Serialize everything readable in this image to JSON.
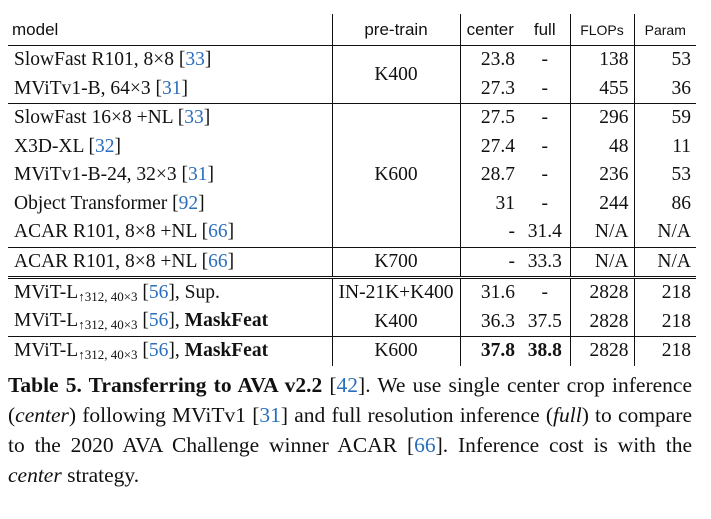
{
  "table": {
    "header": [
      "model",
      "pre-train",
      "center",
      "full",
      "FLOPs",
      "Param"
    ],
    "groups": [
      {
        "pretrain": "K400",
        "rows": [
          {
            "model": [
              {
                "text": "SlowFast R101, 8×8 ["
              },
              {
                "text": "33",
                "style": "ref"
              },
              {
                "text": "]"
              }
            ],
            "center": 23.8,
            "full": "-",
            "flops": 138,
            "param": 53
          },
          {
            "model": [
              {
                "text": "MViTv1-B, 64×3 ["
              },
              {
                "text": "31",
                "style": "ref"
              },
              {
                "text": "]"
              }
            ],
            "center": 27.3,
            "full": "-",
            "flops": 455,
            "param": 36
          }
        ]
      },
      {
        "pretrain": "K600",
        "rows": [
          {
            "model": [
              {
                "text": "SlowFast 16×8 +NL ["
              },
              {
                "text": "33",
                "style": "ref"
              },
              {
                "text": "]"
              }
            ],
            "center": 27.5,
            "full": "-",
            "flops": 296,
            "param": 59
          },
          {
            "model": [
              {
                "text": "X3D-XL ["
              },
              {
                "text": "32",
                "style": "ref"
              },
              {
                "text": "]"
              }
            ],
            "center": 27.4,
            "full": "-",
            "flops": 48,
            "param": 11
          },
          {
            "model": [
              {
                "text": "MViTv1-B-24, 32×3 ["
              },
              {
                "text": "31",
                "style": "ref"
              },
              {
                "text": "]"
              }
            ],
            "center": 28.7,
            "full": "-",
            "flops": 236,
            "param": 53
          },
          {
            "model": [
              {
                "text": "Object Transformer ["
              },
              {
                "text": "92",
                "style": "ref"
              },
              {
                "text": "]"
              }
            ],
            "center": 31.0,
            "full": "-",
            "flops": 244,
            "param": 86
          },
          {
            "model": [
              {
                "text": "ACAR R101, 8×8 +NL ["
              },
              {
                "text": "66",
                "style": "ref"
              },
              {
                "text": "]"
              }
            ],
            "center": "-",
            "full": 31.4,
            "flops": "N/A",
            "param": "N/A"
          }
        ]
      },
      {
        "pretrain": "K700",
        "rows": [
          {
            "model": [
              {
                "text": "ACAR R101, 8×8 +NL ["
              },
              {
                "text": "66",
                "style": "ref"
              },
              {
                "text": "]"
              }
            ],
            "center": "-",
            "full": 33.3,
            "flops": "N/A",
            "param": "N/A"
          }
        ]
      },
      {
        "rows": [
          {
            "pretrain": "IN-21K+K400",
            "model": [
              {
                "text": "MViT-L"
              },
              {
                "text": "↑312, 40×3",
                "style": "sub"
              },
              {
                "text": " ["
              },
              {
                "text": "56",
                "style": "ref"
              },
              {
                "text": "], Sup."
              }
            ],
            "center": 31.6,
            "full": "-",
            "flops": 2828,
            "param": 218
          },
          {
            "pretrain": "K400",
            "model": [
              {
                "text": "MViT-L"
              },
              {
                "text": "↑312, 40×3",
                "style": "sub"
              },
              {
                "text": " ["
              },
              {
                "text": "56",
                "style": "ref"
              },
              {
                "text": "], "
              },
              {
                "text": "MaskFeat",
                "style": "bold"
              }
            ],
            "center": 36.3,
            "full": 37.5,
            "flops": 2828,
            "param": 218
          }
        ]
      },
      {
        "rows": [
          {
            "pretrain": "K600",
            "model": [
              {
                "text": "MViT-L"
              },
              {
                "text": "↑312, 40×3",
                "style": "sub"
              },
              {
                "text": " ["
              },
              {
                "text": "56",
                "style": "ref"
              },
              {
                "text": "], "
              },
              {
                "text": "MaskFeat",
                "style": "bold"
              }
            ],
            "center": 37.8,
            "full": 38.8,
            "flops": 2828,
            "param": 218
          }
        ]
      }
    ],
    "caption": [
      {
        "text": "Table 5. ",
        "style": "bold"
      },
      {
        "text": "Transferring to AVA v2.2",
        "style": "bold"
      },
      {
        "text": " ["
      },
      {
        "text": "42",
        "style": "ref"
      },
      {
        "text": "].  We use single center crop inference ("
      },
      {
        "text": "center",
        "style": "italic"
      },
      {
        "text": ") following MViTv1 ["
      },
      {
        "text": "31",
        "style": "ref"
      },
      {
        "text": "] and full resolution inference ("
      },
      {
        "text": "full",
        "style": "italic"
      },
      {
        "text": ") to compare to the 2020 AVA Challenge winner ACAR ["
      },
      {
        "text": "66",
        "style": "ref"
      },
      {
        "text": "]. Inference cost is with the "
      },
      {
        "text": "center",
        "style": "italic"
      },
      {
        "text": " strategy."
      }
    ]
  }
}
